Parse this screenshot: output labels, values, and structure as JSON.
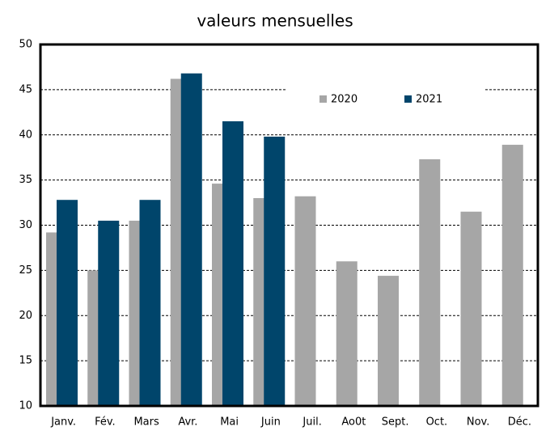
{
  "chart_data": {
    "type": "bar",
    "title": "valeurs mensuelles",
    "categories": [
      "Janv.",
      "Fév.",
      "Mars",
      "Avr.",
      "Mai",
      "Juin",
      "Juil.",
      "Ao0t",
      "Sept.",
      "Oct.",
      "Nov.",
      "Déc."
    ],
    "series": [
      {
        "name": "2020",
        "color": "#a6a6a6",
        "values": [
          29.2,
          25,
          30.5,
          46.2,
          34.6,
          33,
          33.2,
          26,
          24.4,
          37.3,
          31.5,
          38.9
        ]
      },
      {
        "name": "2021",
        "color": "#00456b",
        "values": [
          32.8,
          30.5,
          32.8,
          46.8,
          41.5,
          39.8,
          null,
          null,
          null,
          null,
          null,
          null
        ]
      }
    ],
    "ylim": [
      10,
      50
    ],
    "yticks": [
      10,
      15,
      20,
      25,
      30,
      35,
      40,
      45,
      50
    ],
    "grid": true
  }
}
